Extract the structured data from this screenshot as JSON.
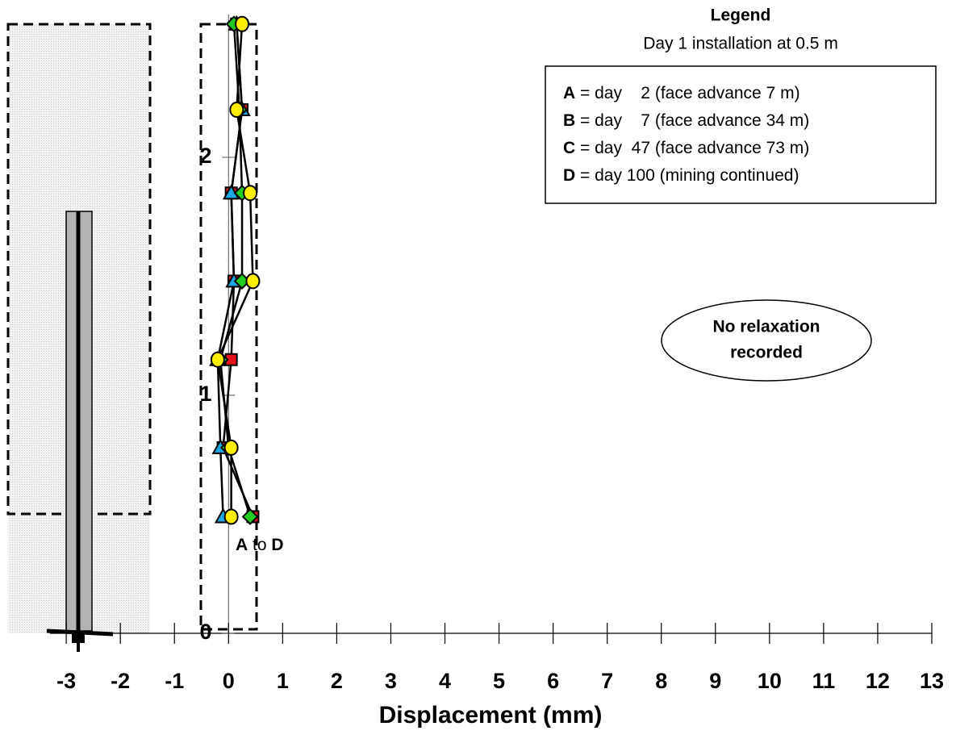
{
  "chart_data": {
    "type": "line",
    "x_label": "Displacement (mm)",
    "xlim": [
      -3.3,
      13
    ],
    "xticks": [
      -3,
      -2,
      -1,
      0,
      1,
      2,
      3,
      4,
      5,
      6,
      7,
      8,
      9,
      10,
      11,
      12,
      13
    ],
    "ylim": [
      0,
      2.6
    ],
    "yticks": [
      0,
      1,
      2
    ],
    "depths": [
      0.49,
      0.78,
      1.15,
      1.48,
      1.85,
      2.2,
      2.56
    ],
    "series": [
      {
        "name": "A",
        "label": "= day    2 (face advance 7 m)",
        "color": "#e8141c",
        "marker": "square",
        "values": [
          0.45,
          -0.1,
          0.05,
          0.1,
          0.05,
          0.25,
          0.15
        ]
      },
      {
        "name": "B",
        "label": "= day    7 (face advance 34 m)",
        "color": "#1ca8e0",
        "marker": "triangle",
        "values": [
          -0.1,
          -0.15,
          -0.2,
          0.1,
          0.05,
          0.25,
          0.15
        ]
      },
      {
        "name": "C",
        "label": "= day  47 (face advance 73 m)",
        "color": "#22cc22",
        "marker": "diamond",
        "values": [
          0.4,
          0.0,
          -0.15,
          0.25,
          0.25,
          0.2,
          0.1
        ]
      },
      {
        "name": "D",
        "label": "= day 100 (mining continued)",
        "color": "#ffee00",
        "marker": "circle",
        "values": [
          0.05,
          0.05,
          -0.2,
          0.45,
          0.4,
          0.15,
          0.25
        ]
      }
    ],
    "legend_title": "Legend",
    "legend_subtitle": "Day 1 installation at 0.5 m",
    "annotation": {
      "lines": [
        "No relaxation",
        "recorded"
      ]
    },
    "range_label": {
      "from": "A",
      "word": "to",
      "to": "D"
    }
  }
}
